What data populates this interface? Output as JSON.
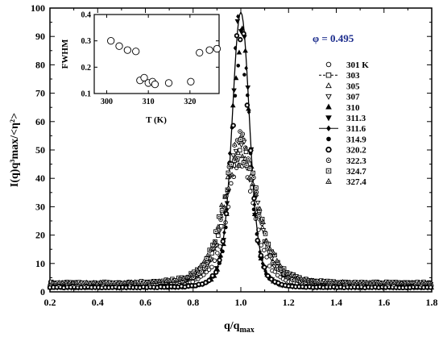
{
  "chart_data": [
    {
      "type": "scatter",
      "xlabel_main": "q/q",
      "xlabel_sub": "max",
      "ylabel": "I(q)q³max/<η²>",
      "xlim": [
        0.2,
        1.8
      ],
      "ylim": [
        0,
        100
      ],
      "xticks": [
        "0.2",
        "0.4",
        "0.6",
        "0.8",
        "1.0",
        "1.2",
        "1.4",
        "1.6",
        "1.8"
      ],
      "yticks": [
        "0",
        "10",
        "20",
        "30",
        "40",
        "50",
        "60",
        "70",
        "80",
        "90",
        "100"
      ],
      "annotation": "φ = 0.495",
      "legend_position": "right",
      "series": [
        {
          "name": "301 K",
          "marker": "circle-open",
          "peak": 46,
          "width": 0.08,
          "base": 2.5
        },
        {
          "name": "303",
          "marker": "square-open-line",
          "peak": 51,
          "width": 0.09,
          "base": 3.0
        },
        {
          "name": "305",
          "marker": "triangle-up-open",
          "peak": 52,
          "width": 0.09,
          "base": 2.8
        },
        {
          "name": "307",
          "marker": "triangle-down-open",
          "peak": 50,
          "width": 0.09,
          "base": 2.7
        },
        {
          "name": "310",
          "marker": "triangle-up-filled",
          "peak": 93,
          "width": 0.05,
          "base": 1.5
        },
        {
          "name": "311.3",
          "marker": "triangle-down-filled",
          "peak": 96,
          "width": 0.05,
          "base": 1.5
        },
        {
          "name": "311.6",
          "marker": "diamond-filled-line",
          "peak": 98.5,
          "width": 0.05,
          "base": 1.5
        },
        {
          "name": "314.9",
          "marker": "circle-filled",
          "peak": 88,
          "width": 0.05,
          "base": 1.6
        },
        {
          "name": "320.2",
          "marker": "circle-open-bold",
          "peak": 92,
          "width": 0.05,
          "base": 1.6
        },
        {
          "name": "322.3",
          "marker": "circle-dot",
          "peak": 53,
          "width": 0.09,
          "base": 2.8
        },
        {
          "name": "324.7",
          "marker": "square-dot",
          "peak": 50,
          "width": 0.1,
          "base": 3.2
        },
        {
          "name": "327.4",
          "marker": "triangle-dot",
          "peak": 49,
          "width": 0.1,
          "base": 3.0
        }
      ]
    },
    {
      "type": "scatter",
      "xlabel": "T (K)",
      "ylabel": "FWHM",
      "xlim": [
        297,
        327
      ],
      "ylim": [
        0.1,
        0.4
      ],
      "xticks": [
        "300",
        "310",
        "320"
      ],
      "yticks": [
        "0.1",
        "0.2",
        "0.3",
        "0.4"
      ],
      "x": [
        301,
        303,
        305,
        307,
        308,
        309,
        310,
        311,
        311.6,
        314.9,
        320.2,
        322.3,
        324.7,
        326.5
      ],
      "y": [
        0.3,
        0.28,
        0.265,
        0.26,
        0.15,
        0.16,
        0.14,
        0.145,
        0.135,
        0.14,
        0.145,
        0.255,
        0.265,
        0.27
      ]
    }
  ]
}
